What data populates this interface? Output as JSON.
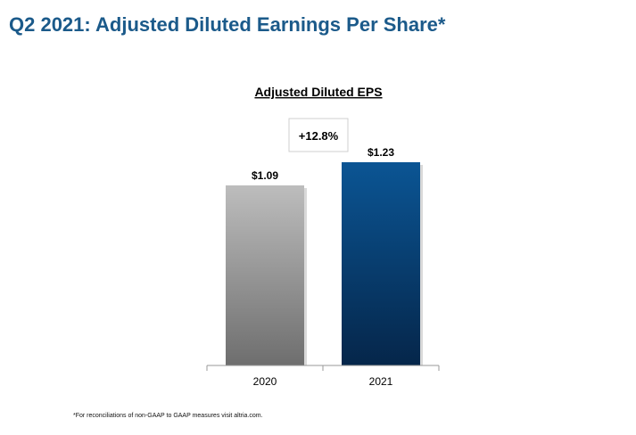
{
  "slide": {
    "title": "Q2 2021: Adjusted Diluted Earnings Per Share*",
    "footnote": "*For reconciliations of non-GAAP to GAAP measures visit altria.com."
  },
  "chart_data": {
    "type": "bar",
    "title": "Adjusted Diluted EPS",
    "categories": [
      "2020",
      "2021"
    ],
    "values": [
      1.09,
      1.23
    ],
    "value_labels": [
      "$1.09",
      "$1.23"
    ],
    "ylim": [
      0,
      1.23
    ],
    "grid": false,
    "legend": "none",
    "annotation": "+12.8%",
    "colors": {
      "bar_2020_top": "#bdbdbd",
      "bar_2020_bottom": "#6e6e6e",
      "bar_2021_top": "#0b5594",
      "bar_2021_bottom": "#05264a",
      "axis": "#999999",
      "text": "#000000"
    }
  }
}
